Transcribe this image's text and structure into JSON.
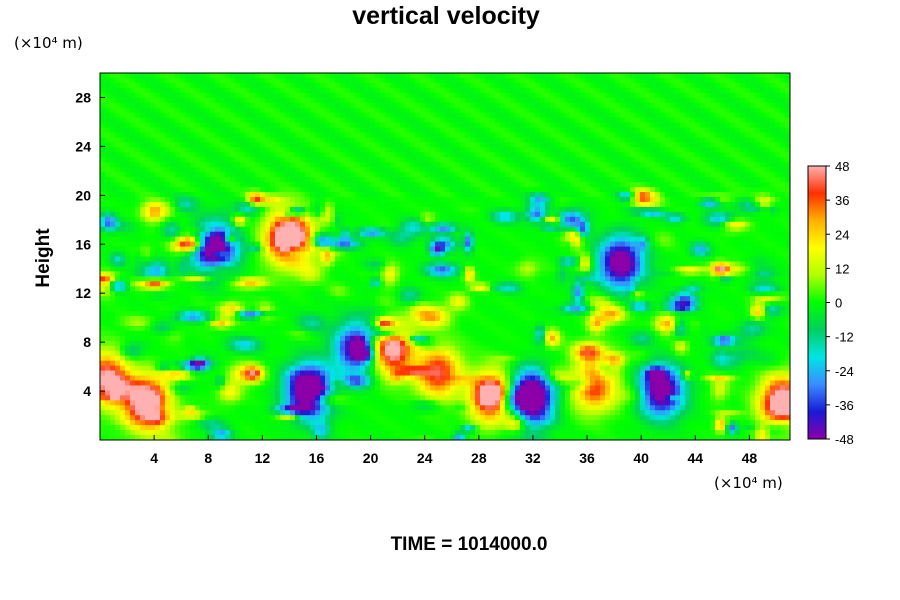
{
  "chart_data": {
    "type": "heatmap",
    "title": "vertical velocity",
    "xlabel": "",
    "ylabel": "Height",
    "x_units": "(×10⁴ m)",
    "y_units": "(×10⁴ m)",
    "xlim": [
      0,
      51
    ],
    "ylim": [
      0,
      30
    ],
    "x_ticks": [
      4,
      8,
      12,
      16,
      20,
      24,
      28,
      32,
      36,
      40,
      44,
      48
    ],
    "y_ticks": [
      4,
      8,
      12,
      16,
      20,
      24,
      28
    ],
    "colorbar": {
      "min": -48,
      "max": 48,
      "ticks": [
        48,
        36,
        24,
        12,
        0,
        -12,
        -24,
        -36,
        -48
      ],
      "colormap": [
        "#8b00a8",
        "#1a1ad6",
        "#3a8cff",
        "#00e5e5",
        "#00d060",
        "#00ff00",
        "#b0ff00",
        "#ffff00",
        "#ffb000",
        "#ff3000",
        "#ffb0b0"
      ]
    },
    "footer": "TIME = 1014000.0",
    "field_features": [
      {
        "sign": "positive",
        "x": 14,
        "y": 16.5,
        "amplitude": 56
      },
      {
        "sign": "positive",
        "x": 3.5,
        "y": 3.0,
        "amplitude": 52
      },
      {
        "sign": "positive",
        "x": 0.5,
        "y": 5.0,
        "amplitude": 40
      },
      {
        "sign": "positive",
        "x": 25,
        "y": 5.5,
        "amplitude": 34
      },
      {
        "sign": "positive",
        "x": 36.5,
        "y": 4.5,
        "amplitude": 34
      },
      {
        "sign": "positive",
        "x": 50.5,
        "y": 3.0,
        "amplitude": 52
      },
      {
        "sign": "positive",
        "x": 29,
        "y": 3.5,
        "amplitude": 42
      },
      {
        "sign": "positive",
        "x": 21.5,
        "y": 7.5,
        "amplitude": 46
      },
      {
        "sign": "negative",
        "x": 15.5,
        "y": 4.0,
        "amplitude": 58
      },
      {
        "sign": "negative",
        "x": 31.8,
        "y": 3.5,
        "amplitude": 58
      },
      {
        "sign": "negative",
        "x": 41.5,
        "y": 4.0,
        "amplitude": 46
      },
      {
        "sign": "negative",
        "x": 8.5,
        "y": 15.5,
        "amplitude": 48
      },
      {
        "sign": "negative",
        "x": 38.5,
        "y": 14.5,
        "amplitude": 46
      },
      {
        "sign": "negative",
        "x": 19,
        "y": 7.5,
        "amplitude": 40
      }
    ]
  }
}
